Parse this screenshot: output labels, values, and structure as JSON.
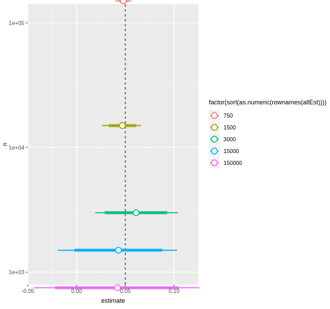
{
  "chart_data": {
    "type": "scatter",
    "title": "",
    "xlabel": "estimate",
    "ylabel": "n",
    "xlim": [
      -0.05,
      0.125
    ],
    "ylim_log10": [
      2.9,
      5.15
    ],
    "y_scale": "log10",
    "x_ticks": [
      -0.05,
      0.0,
      0.05,
      0.1
    ],
    "x_tick_labels": [
      "-0.05",
      "0.00",
      "0.05",
      "0.10"
    ],
    "y_ticks": [
      1000,
      10000,
      100000
    ],
    "y_tick_labels": [
      "1e+03",
      "1e+04",
      "1e+05"
    ],
    "reference_line_x": 0.05,
    "grid": true,
    "legend_position": "right",
    "legend_title": "factor(sort(as.numeric(rownames(allEst))))",
    "series": [
      {
        "name": "750",
        "color": "#F8766D",
        "y": 150000,
        "estimate": 0.048,
        "inner": [
          0.044,
          0.052
        ],
        "outer": [
          0.04,
          0.056
        ]
      },
      {
        "name": "1500",
        "color": "#A3A500",
        "y": 15000,
        "estimate": 0.047,
        "inner": [
          0.033,
          0.061
        ],
        "outer": [
          0.026,
          0.066
        ]
      },
      {
        "name": "3000",
        "color": "#00BF7D",
        "y": 3000,
        "estimate": 0.061,
        "inner": [
          0.029,
          0.093
        ],
        "outer": [
          0.019,
          0.104
        ]
      },
      {
        "name": "15000",
        "color": "#00B0F6",
        "y": 1500,
        "estimate": 0.043,
        "inner": [
          -0.002,
          0.088
        ],
        "outer": [
          -0.019,
          0.103
        ]
      },
      {
        "name": "150000",
        "color": "#E76BF3",
        "y": 750,
        "estimate": 0.042,
        "inner": [
          -0.022,
          0.105
        ],
        "outer": [
          -0.044,
          0.126
        ]
      }
    ]
  }
}
